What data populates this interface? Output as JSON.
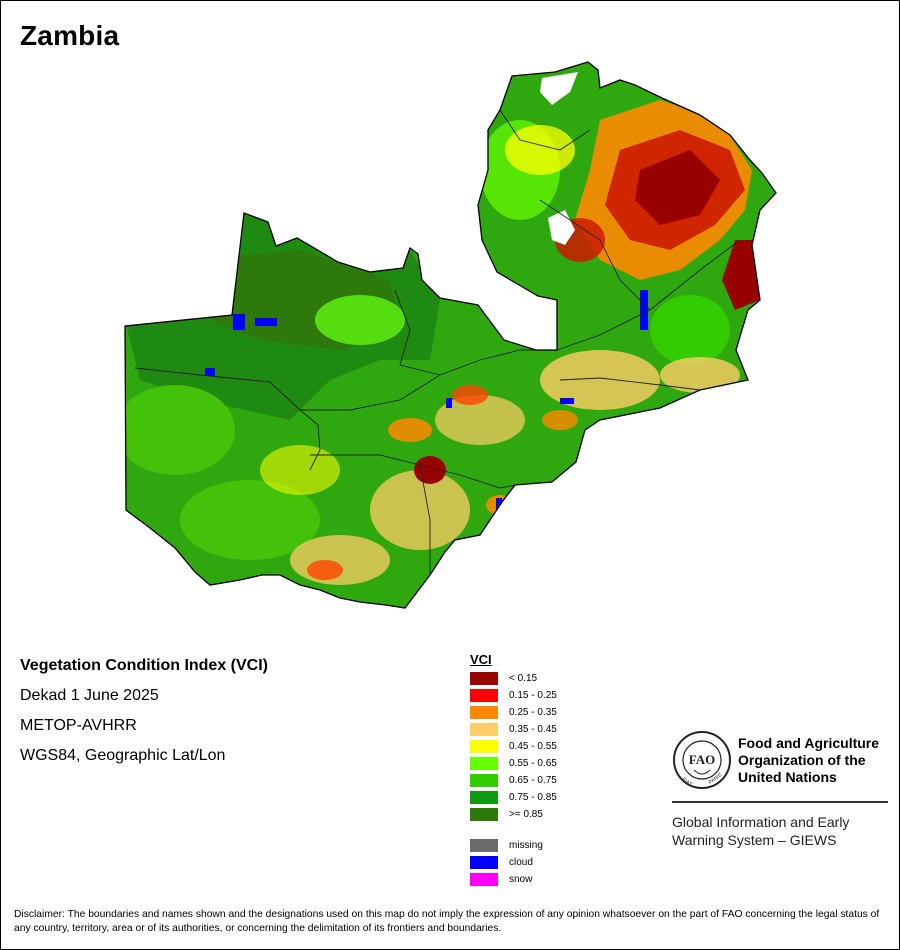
{
  "map": {
    "title": "Zambia",
    "index_title": "Vegetation Condition Index (VCI)",
    "period": "Dekad 1 June 2025",
    "sensor": "METOP-AVHRR",
    "projection": "WGS84, Geographic Lat/Lon"
  },
  "legend": {
    "title": "VCI",
    "classes": [
      {
        "label": "< 0.15",
        "color": "#990000"
      },
      {
        "label": "0.15 - 0.25",
        "color": "#ff0000"
      },
      {
        "label": "0.25 - 0.35",
        "color": "#ff8800"
      },
      {
        "label": "0.35 - 0.45",
        "color": "#ffcc66"
      },
      {
        "label": "0.45 - 0.55",
        "color": "#ffff00"
      },
      {
        "label": "0.55 - 0.65",
        "color": "#66ff00"
      },
      {
        "label": "0.65 - 0.75",
        "color": "#33cc00"
      },
      {
        "label": "0.75 - 0.85",
        "color": "#119911"
      },
      {
        "label": ">= 0.85",
        "color": "#2d7a0a"
      }
    ],
    "special": [
      {
        "label": "missing",
        "color": "#6b6b6b"
      },
      {
        "label": "cloud",
        "color": "#0000ff"
      },
      {
        "label": "snow",
        "color": "#ff00ff"
      }
    ]
  },
  "organization": {
    "name": "Food and Agriculture Organization of the United Nations",
    "logo_text": "FAO",
    "logo_ring_left": "FIAT",
    "logo_ring_right": "PANIS",
    "system": "Global Information and Early Warning System – GIEWS"
  },
  "disclaimer": "Disclaimer: The boundaries and names shown and the designations used on this map do not imply the expression of any opinion whatsoever on the part of FAO concerning the legal status of any country, territory, area or of its authorities, or concerning the delimitation of its frontiers and boundaries."
}
